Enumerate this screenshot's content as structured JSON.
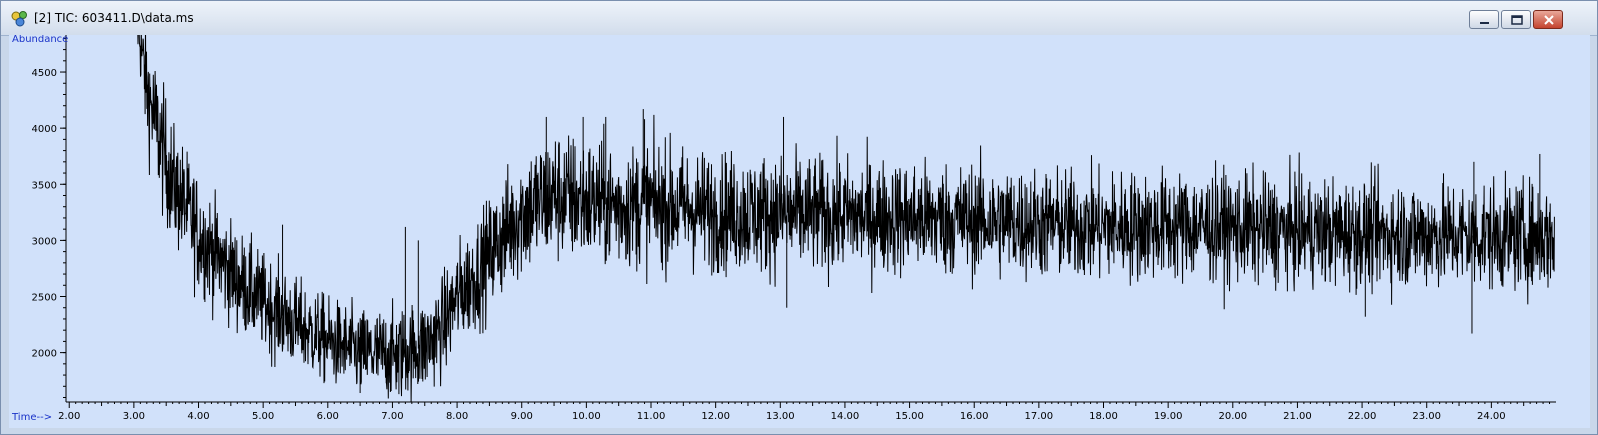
{
  "window": {
    "title": "[2] TIC: 603411.D\\data.ms",
    "icon": "chromatogram-app-icon",
    "controls": [
      "minimize-icon",
      "maximize-icon",
      "close-icon"
    ]
  },
  "chart_data": {
    "type": "line",
    "ylabel": "Abundance",
    "xlabel": "Time-->",
    "xlim": [
      1.95,
      25.0
    ],
    "ylim": [
      1560,
      4830
    ],
    "x_ticks": [
      "2.00",
      "3.00",
      "4.00",
      "5.00",
      "6.00",
      "7.00",
      "8.00",
      "9.00",
      "10.00",
      "11.00",
      "12.00",
      "13.00",
      "14.00",
      "15.00",
      "16.00",
      "17.00",
      "18.00",
      "19.00",
      "20.00",
      "21.00",
      "22.00",
      "23.00",
      "24.00"
    ],
    "y_ticks": [
      "2000",
      "2500",
      "3000",
      "3500",
      "4000",
      "4500"
    ],
    "grid": false,
    "series": [
      {
        "color": "#000000",
        "envelope": {
          "time": [
            3.0,
            3.2,
            3.4,
            3.6,
            3.8,
            4.0,
            4.3,
            4.6,
            5.0,
            5.5,
            6.0,
            6.5,
            7.0,
            7.5,
            7.8,
            8.0,
            8.3,
            8.6,
            9.0,
            9.5,
            10.0,
            10.5,
            11.0,
            12.0,
            13.0,
            14.0,
            15.0,
            16.0,
            17.0,
            18.0,
            19.0,
            20.0,
            21.0,
            22.0,
            23.0,
            24.0,
            25.0
          ],
          "abundance": [
            5200,
            4350,
            3900,
            3500,
            3300,
            3050,
            2850,
            2650,
            2450,
            2250,
            2100,
            2000,
            1980,
            2050,
            2250,
            2500,
            2700,
            2950,
            3250,
            3400,
            3350,
            3300,
            3330,
            3250,
            3230,
            3220,
            3200,
            3180,
            3150,
            3120,
            3130,
            3110,
            3080,
            3060,
            3050,
            3040,
            3030
          ],
          "noise": [
            120,
            250,
            280,
            260,
            250,
            250,
            230,
            220,
            210,
            200,
            190,
            190,
            200,
            210,
            220,
            230,
            240,
            250,
            280,
            290,
            280,
            270,
            270,
            260,
            260,
            250,
            250,
            245,
            240,
            240,
            240,
            240,
            235,
            235,
            235,
            235,
            235
          ]
        },
        "peaks": [
          {
            "time": 10.88,
            "abundance": 4170
          },
          {
            "time": 10.9,
            "abundance": 4080
          },
          {
            "time": 9.38,
            "abundance": 4100
          },
          {
            "time": 9.95,
            "abundance": 4100
          },
          {
            "time": 10.3,
            "abundance": 4100
          },
          {
            "time": 13.05,
            "abundance": 4100
          },
          {
            "time": 5.3,
            "abundance": 3140
          },
          {
            "time": 7.2,
            "abundance": 3120
          },
          {
            "time": 7.4,
            "abundance": 3000
          },
          {
            "time": 13.1,
            "abundance": 2400
          },
          {
            "time": 22.05,
            "abundance": 2320
          },
          {
            "time": 23.7,
            "abundance": 2170
          },
          {
            "time": 23.73,
            "abundance": 3700
          },
          {
            "time": 24.75,
            "abundance": 3770
          },
          {
            "time": 6.5,
            "abundance": 1640
          },
          {
            "time": 7.1,
            "abundance": 1630
          }
        ]
      }
    ]
  }
}
